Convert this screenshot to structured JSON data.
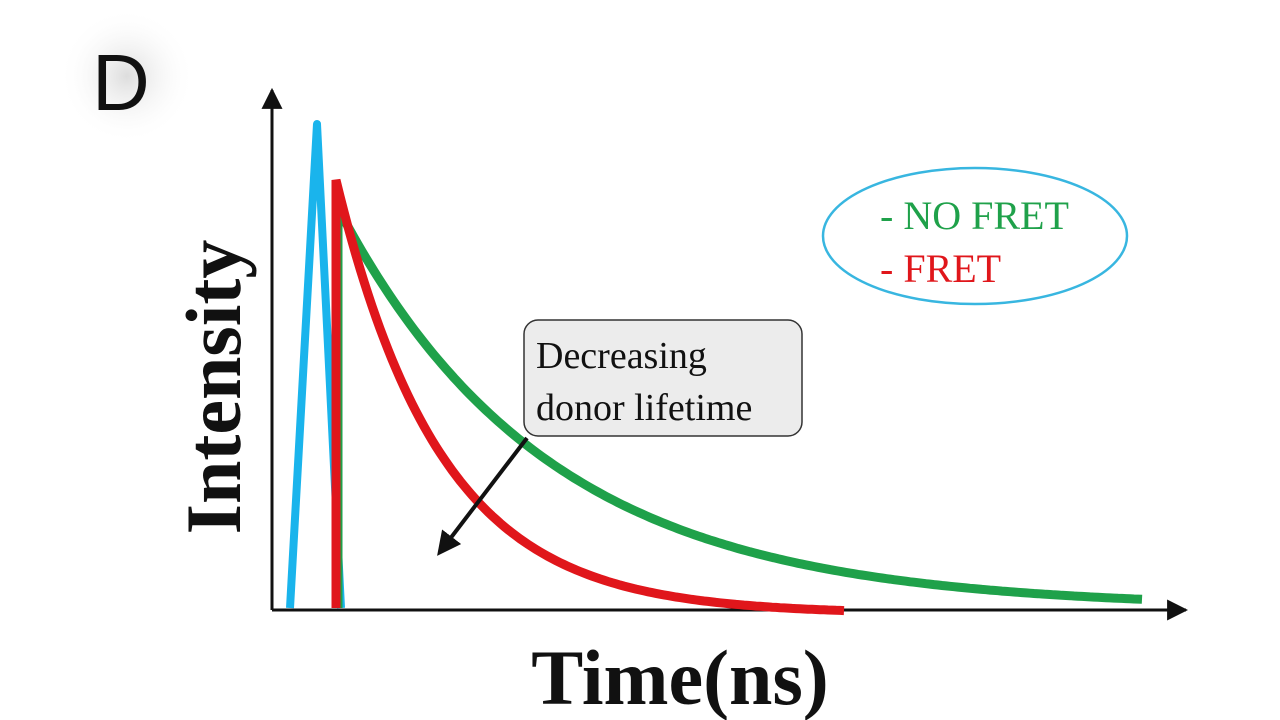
{
  "figure": {
    "panel_label": "D",
    "x_axis_label": "Time(ns)",
    "y_axis_label": "Intensity"
  },
  "legend": {
    "items": [
      {
        "label": "- NO FRET",
        "color": "#1fa14a"
      },
      {
        "label": "- FRET",
        "color": "#e0161b"
      }
    ],
    "border_color": "#38b6e0"
  },
  "callout": {
    "line1": "Decreasing",
    "line2": "donor lifetime"
  },
  "colors": {
    "excitation_pulse": "#1ab4ec",
    "no_fret_curve": "#1fa14a",
    "fret_curve": "#e0161b",
    "axes": "#111111"
  }
}
